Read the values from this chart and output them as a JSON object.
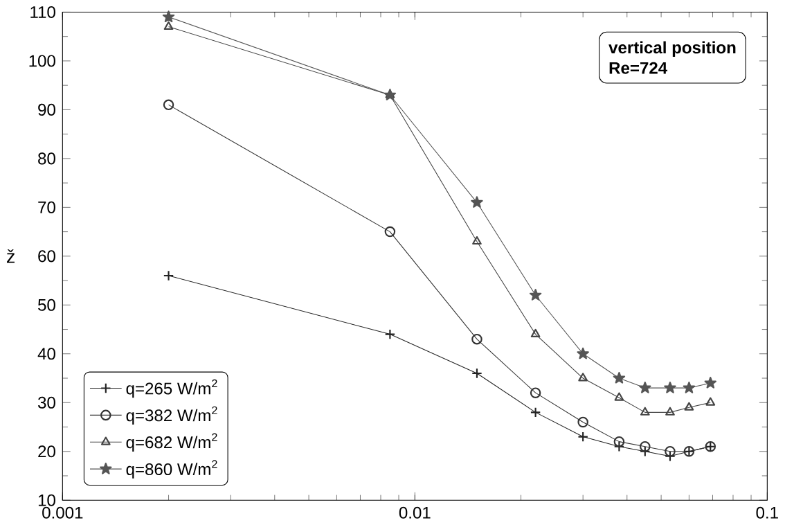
{
  "chart_data": {
    "type": "line",
    "ylabel": "ž",
    "annotations": [
      "vertical position",
      "Re=724"
    ],
    "log": "x",
    "xlim": [
      0.001,
      0.1
    ],
    "xticks": [
      0.001,
      0.01,
      0.1
    ],
    "ylim": [
      10,
      110
    ],
    "yticks": [
      10,
      20,
      30,
      40,
      50,
      60,
      70,
      80,
      90,
      100,
      110
    ],
    "grid": false,
    "legend": "bottom left",
    "line_style": "solid",
    "x": [
      0.002,
      0.0085,
      0.015,
      0.022,
      0.03,
      0.038,
      0.045,
      0.053,
      0.06,
      0.069
    ],
    "series": [
      {
        "name": "q=265 W/m$^{2}$",
        "color": "#222222",
        "marker": "cross",
        "values": [
          56,
          44,
          36,
          28,
          23,
          21,
          20,
          19,
          20,
          21
        ]
      },
      {
        "name": "q=382 W/m$^{2}$",
        "color": "#333333",
        "marker": "circle",
        "values": [
          91,
          65,
          43,
          32,
          26,
          22,
          21,
          20,
          20,
          21
        ]
      },
      {
        "name": "q=682 W/m$^{2}$",
        "color": "#444444",
        "marker": "triangle",
        "values": [
          107,
          93,
          63,
          44,
          35,
          31,
          28,
          28,
          29,
          30
        ]
      },
      {
        "name": "q=860 W/m$^{2}$",
        "color": "#555555",
        "marker": "star",
        "values": [
          109,
          93,
          71,
          52,
          40,
          35,
          33,
          33,
          33,
          34
        ]
      }
    ]
  }
}
